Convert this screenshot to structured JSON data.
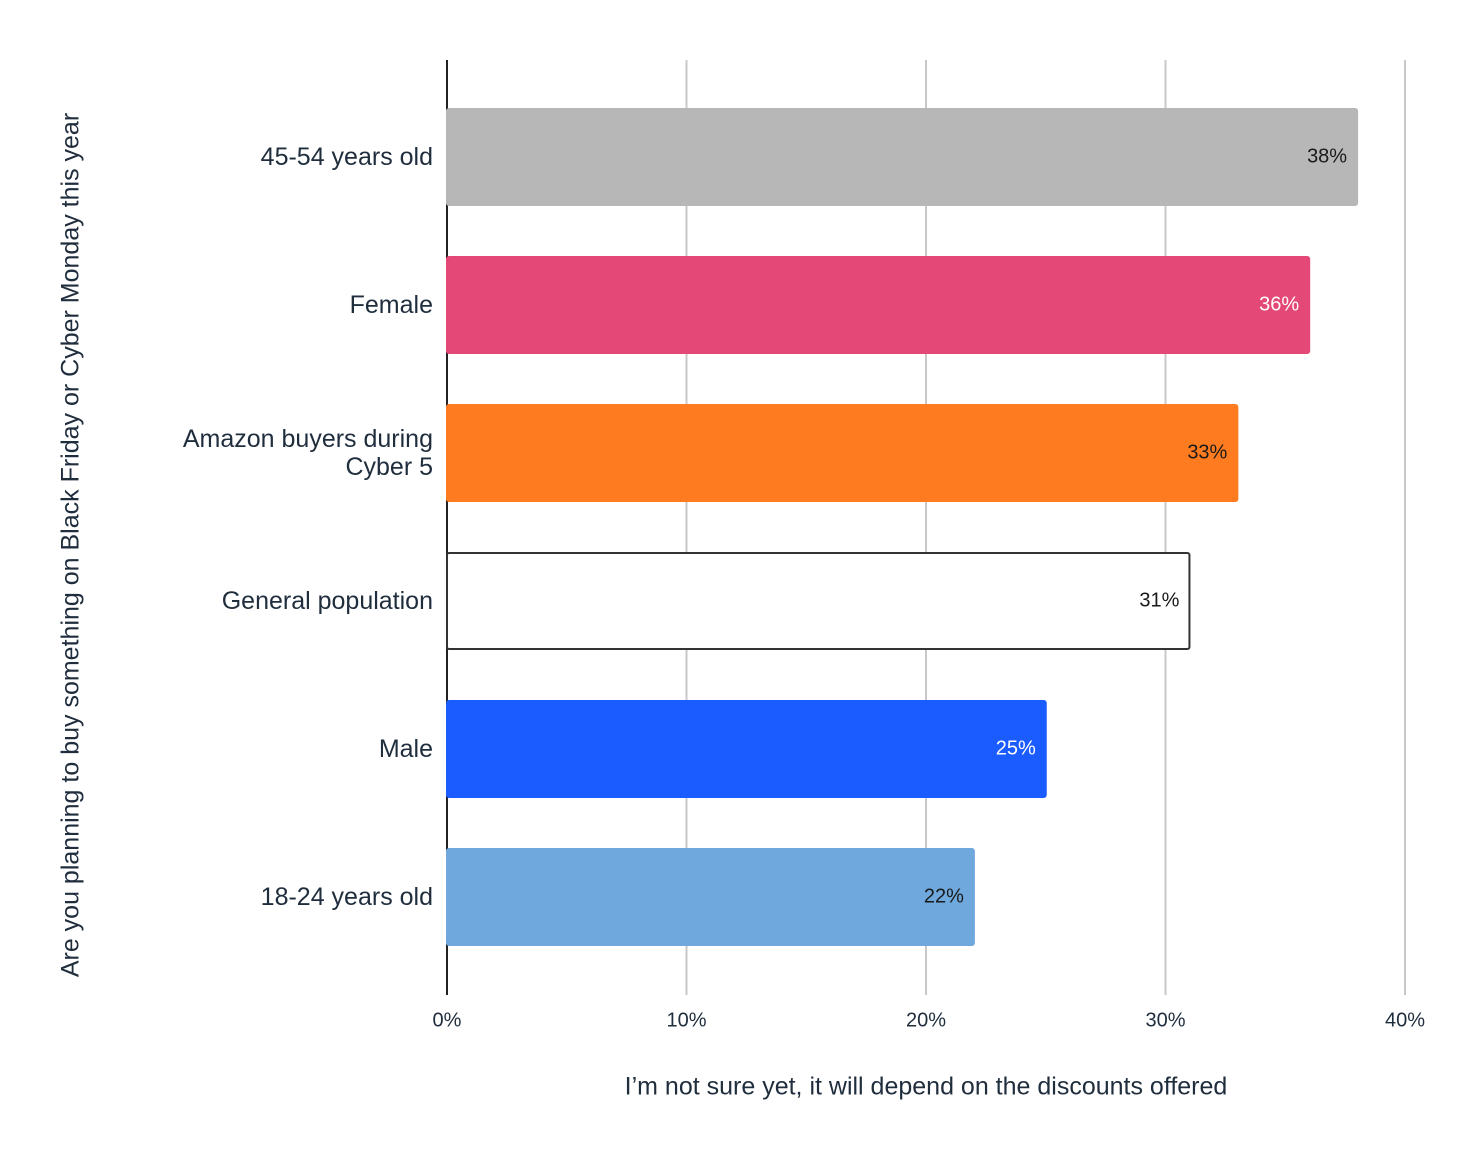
{
  "chart_data": {
    "type": "bar",
    "orientation": "horizontal",
    "x_label": "I’m not sure yet, it will depend on the discounts offered",
    "y_label": "Are you planning to buy something on Black Friday or Cyber Monday this year",
    "categories": [
      "45-54 years old",
      "Female",
      "Amazon buyers during Cyber 5",
      "General population",
      "Male",
      "18-24 years old"
    ],
    "values": [
      38,
      36,
      33,
      31,
      25,
      22
    ],
    "value_labels": [
      "38%",
      "36%",
      "33%",
      "31%",
      "25%",
      "22%"
    ],
    "colors": [
      "#b7b7b7",
      "#e34876",
      "#fe7c1f",
      "#ffffff",
      "#1a5cff",
      "#6fa8dc"
    ],
    "xlim": [
      0,
      40
    ],
    "xticks": [
      {
        "value": 0,
        "label": "0%"
      },
      {
        "value": 10,
        "label": "10%"
      },
      {
        "value": 20,
        "label": "20%"
      },
      {
        "value": 30,
        "label": "30%"
      },
      {
        "value": 40,
        "label": "40%"
      }
    ],
    "grid": true
  }
}
